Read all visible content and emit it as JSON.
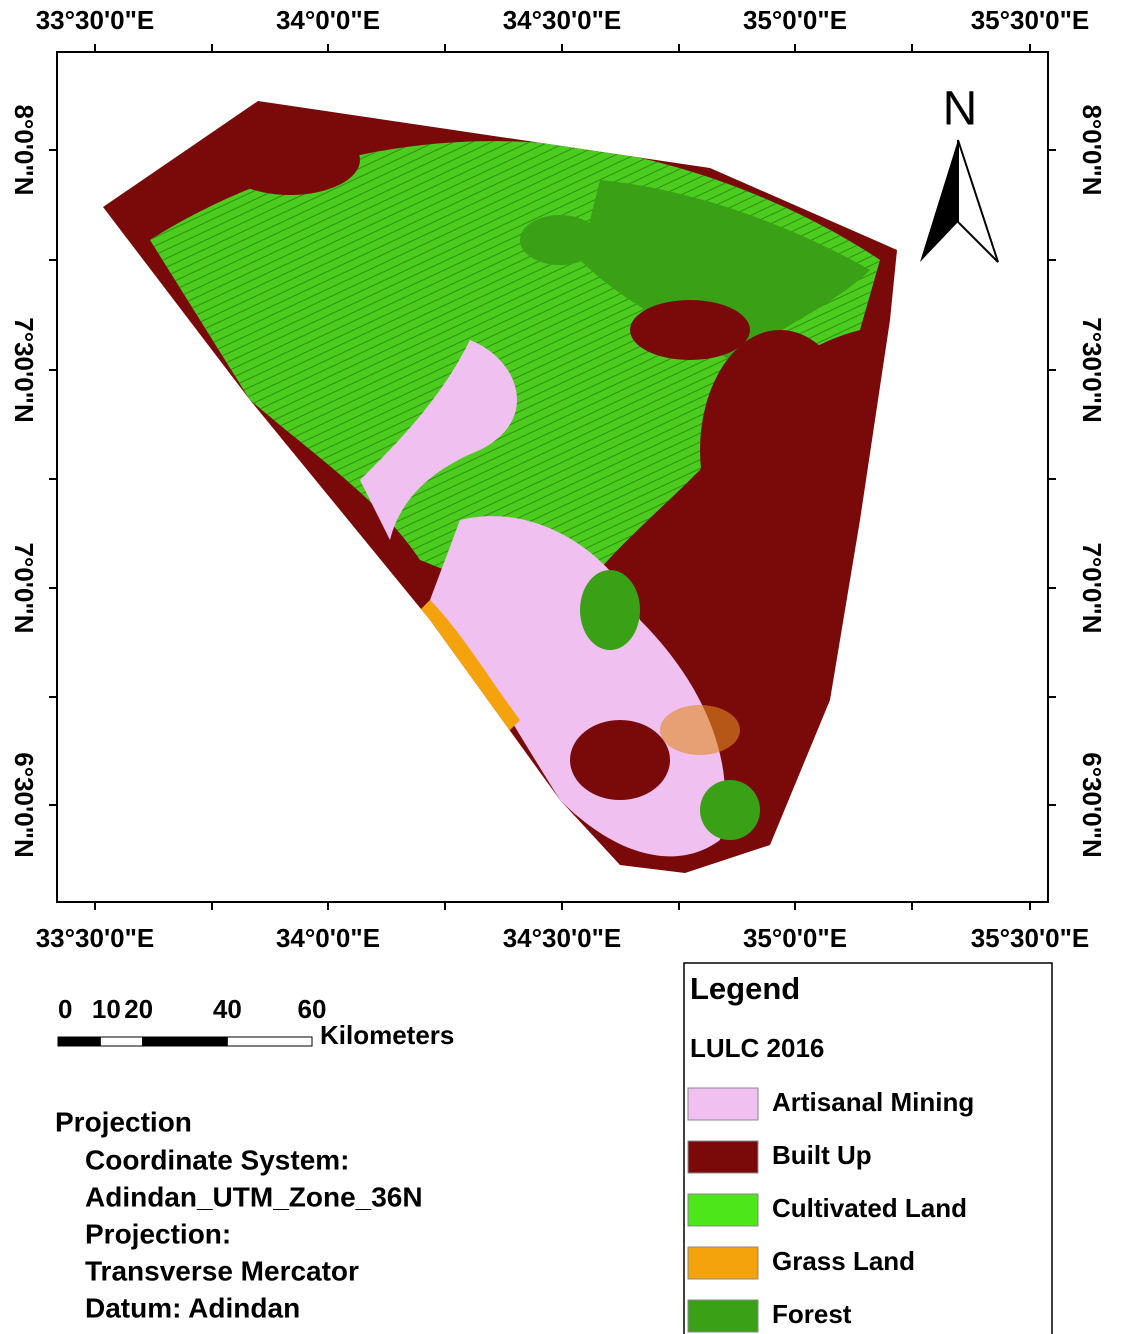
{
  "top_labels": [
    "33°30'0\"E",
    "34°0'0\"E",
    "34°30'0\"E",
    "35°0'0\"E",
    "35°30'0\"E"
  ],
  "bottom_labels": [
    "33°30'0\"E",
    "34°0'0\"E",
    "34°30'0\"E",
    "35°0'0\"E",
    "35°30'0\"E"
  ],
  "left_labels": [
    "8°0'0\"N",
    "7°30'0\"N",
    "7°0'0\"N",
    "6°30'0\"N"
  ],
  "right_labels": [
    "8°0'0\"N",
    "7°30'0\"N",
    "7°0'0\"N",
    "6°30'0\"N"
  ],
  "north_arrow": "N",
  "scale_bar": {
    "ticks": [
      0,
      10,
      20,
      40,
      60
    ],
    "unit": "Kilometers"
  },
  "projection": {
    "heading": "Projection",
    "lines": [
      "Coordinate System:",
      "Adindan_UTM_Zone_36N",
      "Projection:",
      "Transverse Mercator",
      "Datum: Adindan"
    ]
  },
  "legend": {
    "title": "Legend",
    "layer": "LULC 2016",
    "classes": [
      {
        "label": "Artisanal Mining",
        "color": "#f0c0f0"
      },
      {
        "label": "Built Up",
        "color": "#7a0a0a"
      },
      {
        "label": "Cultivated Land",
        "color": "#4ce61a"
      },
      {
        "label": "Grass Land",
        "color": "#f5a30d"
      },
      {
        "label": "Forest",
        "color": "#3aa015"
      }
    ]
  }
}
